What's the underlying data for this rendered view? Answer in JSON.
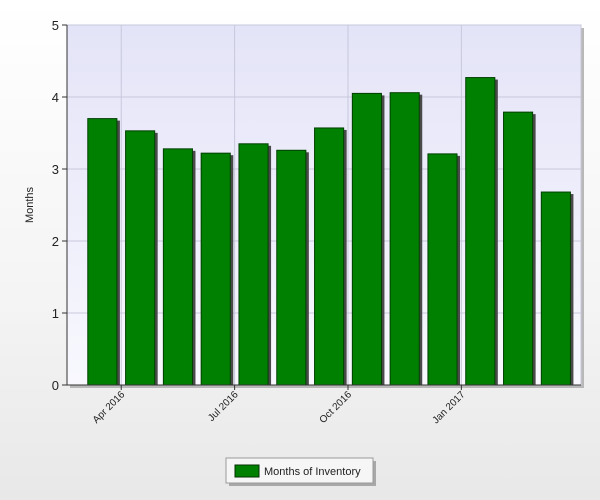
{
  "chart_data": {
    "type": "bar",
    "title": "",
    "xlabel": "",
    "ylabel": "Months",
    "ylim": [
      0,
      5
    ],
    "yticks": [
      0,
      1,
      2,
      3,
      4,
      5
    ],
    "grid": true,
    "legend_position": "bottom-center",
    "x_tick_labels": [
      "Apr 2016",
      "Jul 2016",
      "Oct 2016",
      "Jan 2017"
    ],
    "x_tick_after_bar": [
      0,
      3,
      6,
      9
    ],
    "categories": [
      "",
      "",
      "",
      "",
      "",
      "",
      "",
      "",
      "",
      "",
      "",
      "",
      ""
    ],
    "series": [
      {
        "name": "Months of Inventory",
        "color": "#008000",
        "values": [
          3.7,
          3.53,
          3.28,
          3.22,
          3.35,
          3.26,
          3.57,
          4.05,
          4.06,
          3.21,
          4.27,
          3.79,
          2.68
        ]
      }
    ]
  }
}
